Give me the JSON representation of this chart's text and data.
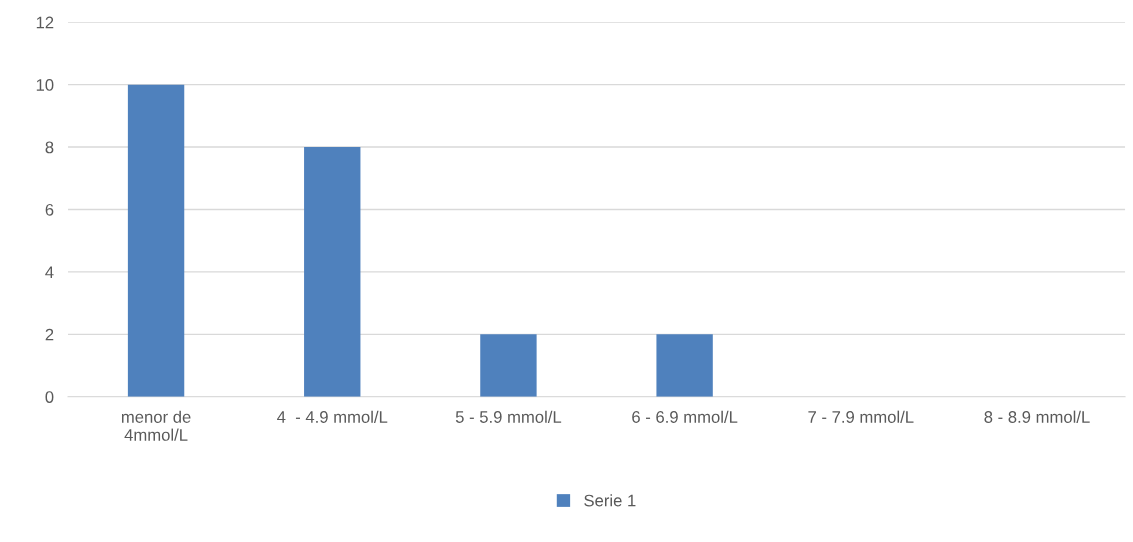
{
  "chart_data": {
    "type": "bar",
    "categories": [
      "menor de\n4mmol/L",
      "4  - 4.9 mmol/L",
      "5 - 5.9 mmol/L",
      "6 - 6.9 mmol/L",
      "7 - 7.9 mmol/L",
      "8 - 8.9 mmol/L"
    ],
    "series": [
      {
        "name": "Serie 1",
        "color": "#4f81bd",
        "values": [
          10,
          8,
          2,
          2,
          0,
          0
        ]
      }
    ],
    "ylim": [
      0,
      12
    ],
    "yticks": [
      0,
      2,
      4,
      6,
      8,
      10,
      12
    ],
    "grid": "y",
    "legend": "bottom"
  }
}
